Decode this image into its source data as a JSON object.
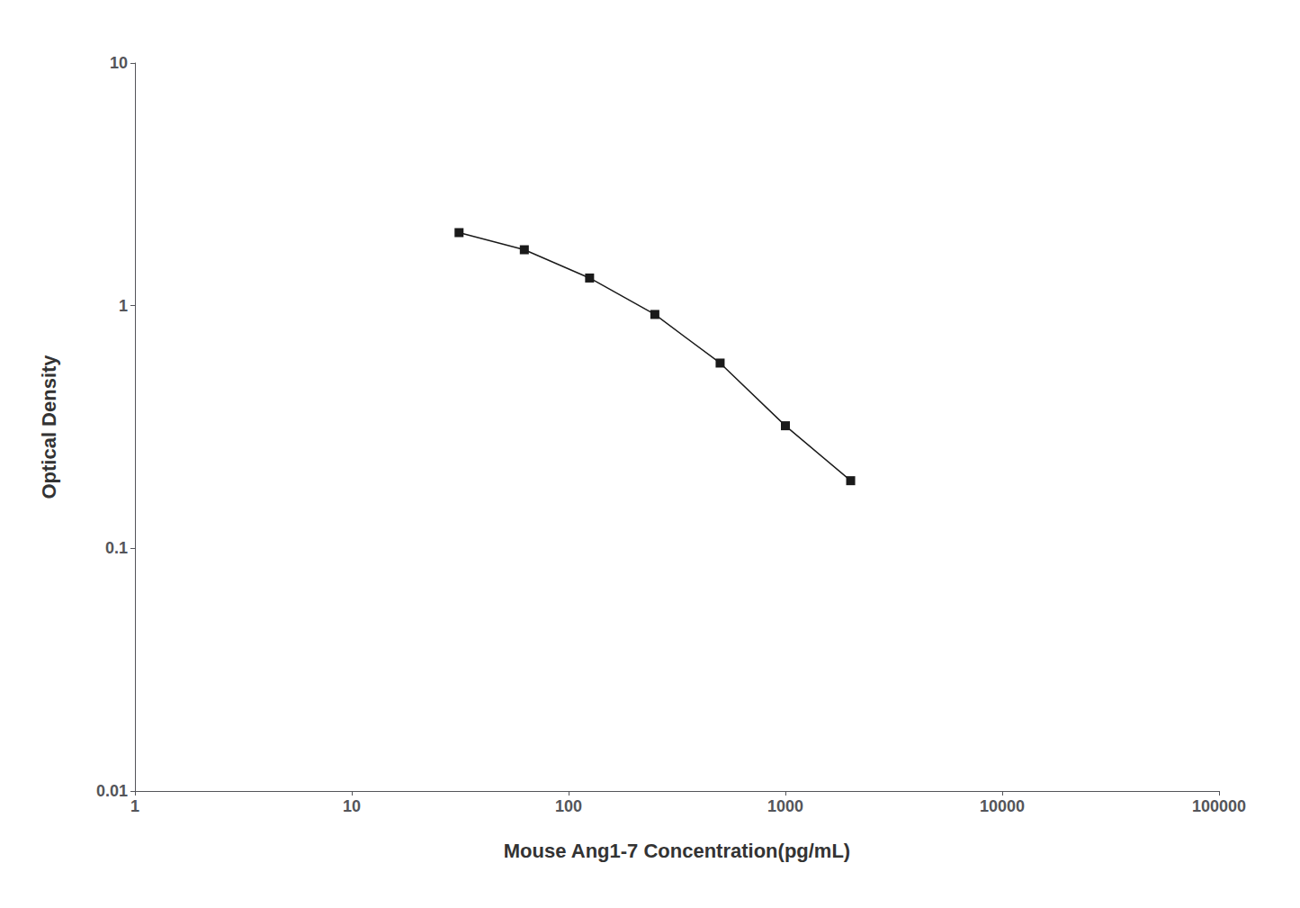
{
  "chart_data": {
    "type": "line",
    "x": [
      31.25,
      62.5,
      125,
      250,
      500,
      1000,
      2000
    ],
    "values": [
      2.0,
      1.7,
      1.3,
      0.92,
      0.58,
      0.32,
      0.19
    ],
    "xlabel": "Mouse Ang1-7 Concentration(pg/mL)",
    "ylabel": "Optical Density",
    "log": true,
    "xlim": [
      1,
      100000
    ],
    "ylim": [
      0.01,
      10
    ],
    "xticks": [
      1,
      10,
      100,
      1000,
      10000,
      100000
    ],
    "yticks": [
      0.01,
      0.1,
      1,
      10
    ],
    "grid": false,
    "color": "#1a1a1a",
    "marker": "square"
  }
}
